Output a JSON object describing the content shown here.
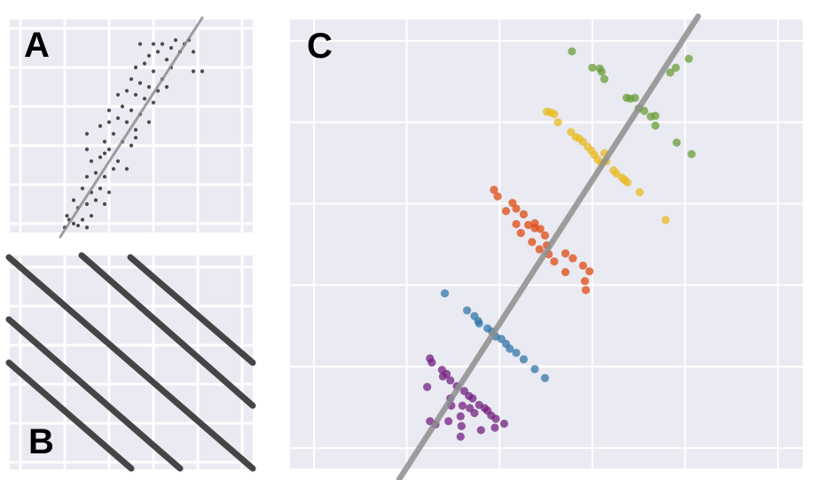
{
  "labels": {
    "a": "A",
    "b": "B",
    "c": "C"
  },
  "colors": {
    "panel_background": "#EAEAF2",
    "grid": "#FFFFFF",
    "trend_line": "#8E8E8E",
    "scatter_points_a": "#2E2E2E",
    "lines_b": "#454545",
    "groups": [
      "#732080",
      "#3475A8",
      "#DD4A12",
      "#E8B920",
      "#6A9E3A"
    ]
  },
  "chart_data": [
    {
      "panel": "A",
      "type": "scatter",
      "grid": true,
      "xlim": [
        -0.24,
        5.24
      ],
      "ylim": [
        -0.23,
        5.23
      ],
      "points": [
        [
          1.0,
          -0.1
        ],
        [
          1.1,
          0.1
        ],
        [
          1.2,
          0.0
        ],
        [
          1.3,
          -0.05
        ],
        [
          1.05,
          0.2
        ],
        [
          1.4,
          0.1
        ],
        [
          1.5,
          -0.1
        ],
        [
          1.6,
          0.2
        ],
        [
          1.3,
          0.4
        ],
        [
          1.5,
          0.5
        ],
        [
          1.7,
          0.6
        ],
        [
          1.2,
          0.6
        ],
        [
          1.4,
          0.9
        ],
        [
          1.6,
          0.8
        ],
        [
          1.8,
          0.9
        ],
        [
          1.9,
          0.5
        ],
        [
          2.0,
          0.8
        ],
        [
          1.5,
          1.2
        ],
        [
          1.7,
          1.3
        ],
        [
          1.9,
          1.2
        ],
        [
          2.1,
          1.4
        ],
        [
          1.6,
          1.6
        ],
        [
          1.8,
          1.7
        ],
        [
          2.0,
          1.9
        ],
        [
          2.2,
          1.6
        ],
        [
          2.4,
          1.4
        ],
        [
          1.5,
          1.9
        ],
        [
          1.9,
          2.1
        ],
        [
          2.1,
          2.3
        ],
        [
          2.3,
          2.1
        ],
        [
          2.5,
          2.0
        ],
        [
          1.8,
          2.5
        ],
        [
          2.0,
          2.6
        ],
        [
          2.2,
          2.7
        ],
        [
          2.4,
          2.6
        ],
        [
          2.6,
          2.4
        ],
        [
          2.0,
          2.9
        ],
        [
          2.3,
          3.0
        ],
        [
          2.5,
          2.9
        ],
        [
          2.7,
          2.8
        ],
        [
          2.9,
          2.6
        ],
        [
          2.2,
          3.3
        ],
        [
          2.4,
          3.4
        ],
        [
          2.6,
          3.3
        ],
        [
          2.8,
          3.2
        ],
        [
          3.0,
          3.1
        ],
        [
          2.5,
          3.7
        ],
        [
          2.7,
          3.6
        ],
        [
          2.9,
          3.5
        ],
        [
          3.1,
          3.4
        ],
        [
          2.6,
          4.0
        ],
        [
          2.8,
          4.1
        ],
        [
          3.0,
          3.9
        ],
        [
          3.2,
          3.7
        ],
        [
          2.9,
          4.3
        ],
        [
          3.1,
          4.4
        ],
        [
          3.3,
          4.2
        ],
        [
          3.4,
          4.0
        ],
        [
          3.0,
          4.6
        ],
        [
          3.2,
          4.6
        ],
        [
          3.4,
          4.5
        ],
        [
          3.6,
          4.4
        ],
        [
          3.5,
          4.7
        ],
        [
          3.7,
          4.6
        ],
        [
          3.8,
          4.7
        ],
        [
          3.9,
          4.4
        ],
        [
          2.7,
          4.6
        ],
        [
          3.9,
          3.9
        ],
        [
          4.1,
          3.9
        ],
        [
          1.5,
          2.3
        ],
        [
          3.3,
          3.5
        ],
        [
          1.9,
          1.8
        ],
        [
          2.6,
          2.2
        ]
      ],
      "trend_line": [
        [
          0.9,
          -0.34
        ],
        [
          4.1,
          5.27
        ]
      ]
    },
    {
      "panel": "B",
      "type": "line",
      "grid": true,
      "xlim": [
        -0.24,
        5.24
      ],
      "ylim": [
        -0.18,
        5.3
      ],
      "lines": [
        [
          [
            -0.26,
            5.25
          ],
          [
            5.24,
            -0.16
          ]
        ],
        [
          [
            1.38,
            5.3
          ],
          [
            5.24,
            1.45
          ]
        ],
        [
          [
            2.48,
            5.25
          ],
          [
            5.24,
            2.55
          ]
        ],
        [
          [
            -0.26,
            3.66
          ],
          [
            3.6,
            -0.16
          ]
        ],
        [
          [
            -0.26,
            2.55
          ],
          [
            2.5,
            -0.16
          ]
        ]
      ]
    },
    {
      "panel": "C",
      "type": "scatter",
      "grid": true,
      "xlim": [
        -0.26,
        5.27
      ],
      "ylim": [
        -0.25,
        5.26
      ],
      "groups": [
        {
          "color": "#732080",
          "points": [
            [
              1.25,
              1.1
            ],
            [
              1.27,
              1.05
            ],
            [
              1.38,
              0.96
            ],
            [
              1.43,
              0.91
            ],
            [
              1.39,
              0.88
            ],
            [
              1.47,
              0.83
            ],
            [
              1.22,
              0.75
            ],
            [
              1.54,
              0.76
            ],
            [
              1.62,
              0.7
            ],
            [
              1.67,
              0.64
            ],
            [
              1.71,
              0.61
            ],
            [
              1.47,
              0.61
            ],
            [
              1.48,
              0.52
            ],
            [
              1.6,
              0.52
            ],
            [
              1.68,
              0.49
            ],
            [
              1.78,
              0.53
            ],
            [
              1.84,
              0.49
            ],
            [
              1.87,
              0.46
            ],
            [
              1.73,
              0.43
            ],
            [
              1.58,
              0.39
            ],
            [
              1.91,
              0.4
            ],
            [
              1.96,
              0.36
            ],
            [
              2.05,
              0.3
            ],
            [
              1.25,
              0.33
            ],
            [
              1.31,
              0.29
            ],
            [
              1.45,
              0.33
            ],
            [
              1.59,
              0.27
            ],
            [
              1.8,
              0.22
            ],
            [
              1.95,
              0.25
            ],
            [
              1.58,
              0.14
            ]
          ]
        },
        {
          "color": "#3475A8",
          "points": [
            [
              1.41,
              1.9
            ],
            [
              1.65,
              1.69
            ],
            [
              1.73,
              1.62
            ],
            [
              1.77,
              1.56
            ],
            [
              1.78,
              1.53
            ],
            [
              1.87,
              1.47
            ],
            [
              1.92,
              1.43
            ],
            [
              1.96,
              1.37
            ],
            [
              2.02,
              1.34
            ],
            [
              2.07,
              1.28
            ],
            [
              2.11,
              1.22
            ],
            [
              2.18,
              1.17
            ],
            [
              2.26,
              1.09
            ],
            [
              2.38,
              0.97
            ],
            [
              2.49,
              0.86
            ]
          ]
        },
        {
          "color": "#DD4A12",
          "points": [
            [
              1.94,
              3.17
            ],
            [
              1.98,
              3.09
            ],
            [
              2.14,
              3.01
            ],
            [
              2.07,
              2.91
            ],
            [
              2.18,
              2.94
            ],
            [
              2.26,
              2.87
            ],
            [
              2.18,
              2.75
            ],
            [
              2.23,
              2.64
            ],
            [
              2.31,
              2.74
            ],
            [
              2.38,
              2.76
            ],
            [
              2.38,
              2.7
            ],
            [
              2.44,
              2.69
            ],
            [
              2.49,
              2.61
            ],
            [
              2.35,
              2.53
            ],
            [
              2.43,
              2.44
            ],
            [
              2.51,
              2.49
            ],
            [
              2.53,
              2.38
            ],
            [
              2.59,
              2.29
            ],
            [
              2.71,
              2.39
            ],
            [
              2.79,
              2.33
            ],
            [
              2.9,
              2.24
            ],
            [
              2.97,
              2.17
            ],
            [
              2.71,
              2.16
            ],
            [
              2.92,
              2.05
            ],
            [
              2.93,
              1.94
            ]
          ]
        },
        {
          "color": "#E8B920",
          "points": [
            [
              2.51,
              4.13
            ],
            [
              2.55,
              4.12
            ],
            [
              2.59,
              4.1
            ],
            [
              2.63,
              4.0
            ],
            [
              2.77,
              3.88
            ],
            [
              2.82,
              3.82
            ],
            [
              2.86,
              3.8
            ],
            [
              2.9,
              3.76
            ],
            [
              2.95,
              3.7
            ],
            [
              2.99,
              3.65
            ],
            [
              3.02,
              3.6
            ],
            [
              3.06,
              3.54
            ],
            [
              3.1,
              3.5
            ],
            [
              3.13,
              3.62
            ],
            [
              3.15,
              3.52
            ],
            [
              3.23,
              3.41
            ],
            [
              3.26,
              3.37
            ],
            [
              3.32,
              3.32
            ],
            [
              3.35,
              3.29
            ],
            [
              3.38,
              3.26
            ],
            [
              3.51,
              3.14
            ],
            [
              3.79,
              2.8
            ]
          ]
        },
        {
          "color": "#6A9E3A",
          "points": [
            [
              2.78,
              4.87
            ],
            [
              3.0,
              4.67
            ],
            [
              3.08,
              4.66
            ],
            [
              3.1,
              4.62
            ],
            [
              3.13,
              4.53
            ],
            [
              3.37,
              4.3
            ],
            [
              3.41,
              4.29
            ],
            [
              3.46,
              4.3
            ],
            [
              3.5,
              4.17
            ],
            [
              3.56,
              4.14
            ],
            [
              3.63,
              4.07
            ],
            [
              3.68,
              4.08
            ],
            [
              3.68,
              3.96
            ],
            [
              3.84,
              4.61
            ],
            [
              3.9,
              4.67
            ],
            [
              4.04,
              4.78
            ],
            [
              3.91,
              3.75
            ],
            [
              4.07,
              3.61
            ]
          ]
        }
      ],
      "trend_line": [
        [
          0.92,
          -0.38
        ],
        [
          4.14,
          5.3
        ]
      ]
    }
  ]
}
